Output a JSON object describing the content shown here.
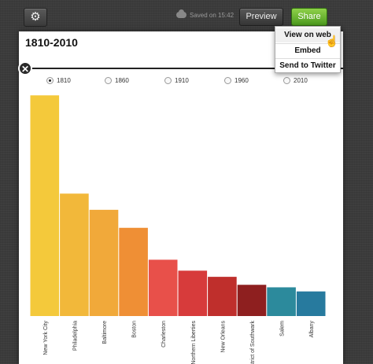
{
  "toolbar": {
    "gear_icon": "gear-icon",
    "saved_text": "Saved on 15:42",
    "cloud_icon": "cloud-icon",
    "preview_label": "Preview",
    "share_label": "Share"
  },
  "share_menu": {
    "items": [
      "View on web",
      "Embed",
      "Send to Twitter"
    ]
  },
  "card": {
    "title": "1810-2010",
    "close_glyph": "✕"
  },
  "year_selector": {
    "options": [
      "1810",
      "1860",
      "1910",
      "1960",
      "2010"
    ],
    "selected": "1810"
  },
  "chart_data": {
    "type": "bar",
    "categories": [
      "New York City",
      "Philadelphia",
      "Baltimore",
      "Boston",
      "Charleston",
      "Northern Liberties",
      "New Orleans",
      "District of Southwark",
      "Salem",
      "Albany"
    ],
    "values": [
      96800,
      53700,
      46600,
      38700,
      24700,
      19900,
      17200,
      13700,
      12600,
      10800
    ],
    "colors": [
      "#f4c93b",
      "#f2b83a",
      "#f1a93a",
      "#ef8f35",
      "#e8504a",
      "#d73b3b",
      "#bf2f2c",
      "#8e1f1f",
      "#2c8a9c",
      "#277a9e"
    ],
    "title": "1810-2010",
    "ylim": [
      0,
      100000
    ],
    "grid": false
  }
}
